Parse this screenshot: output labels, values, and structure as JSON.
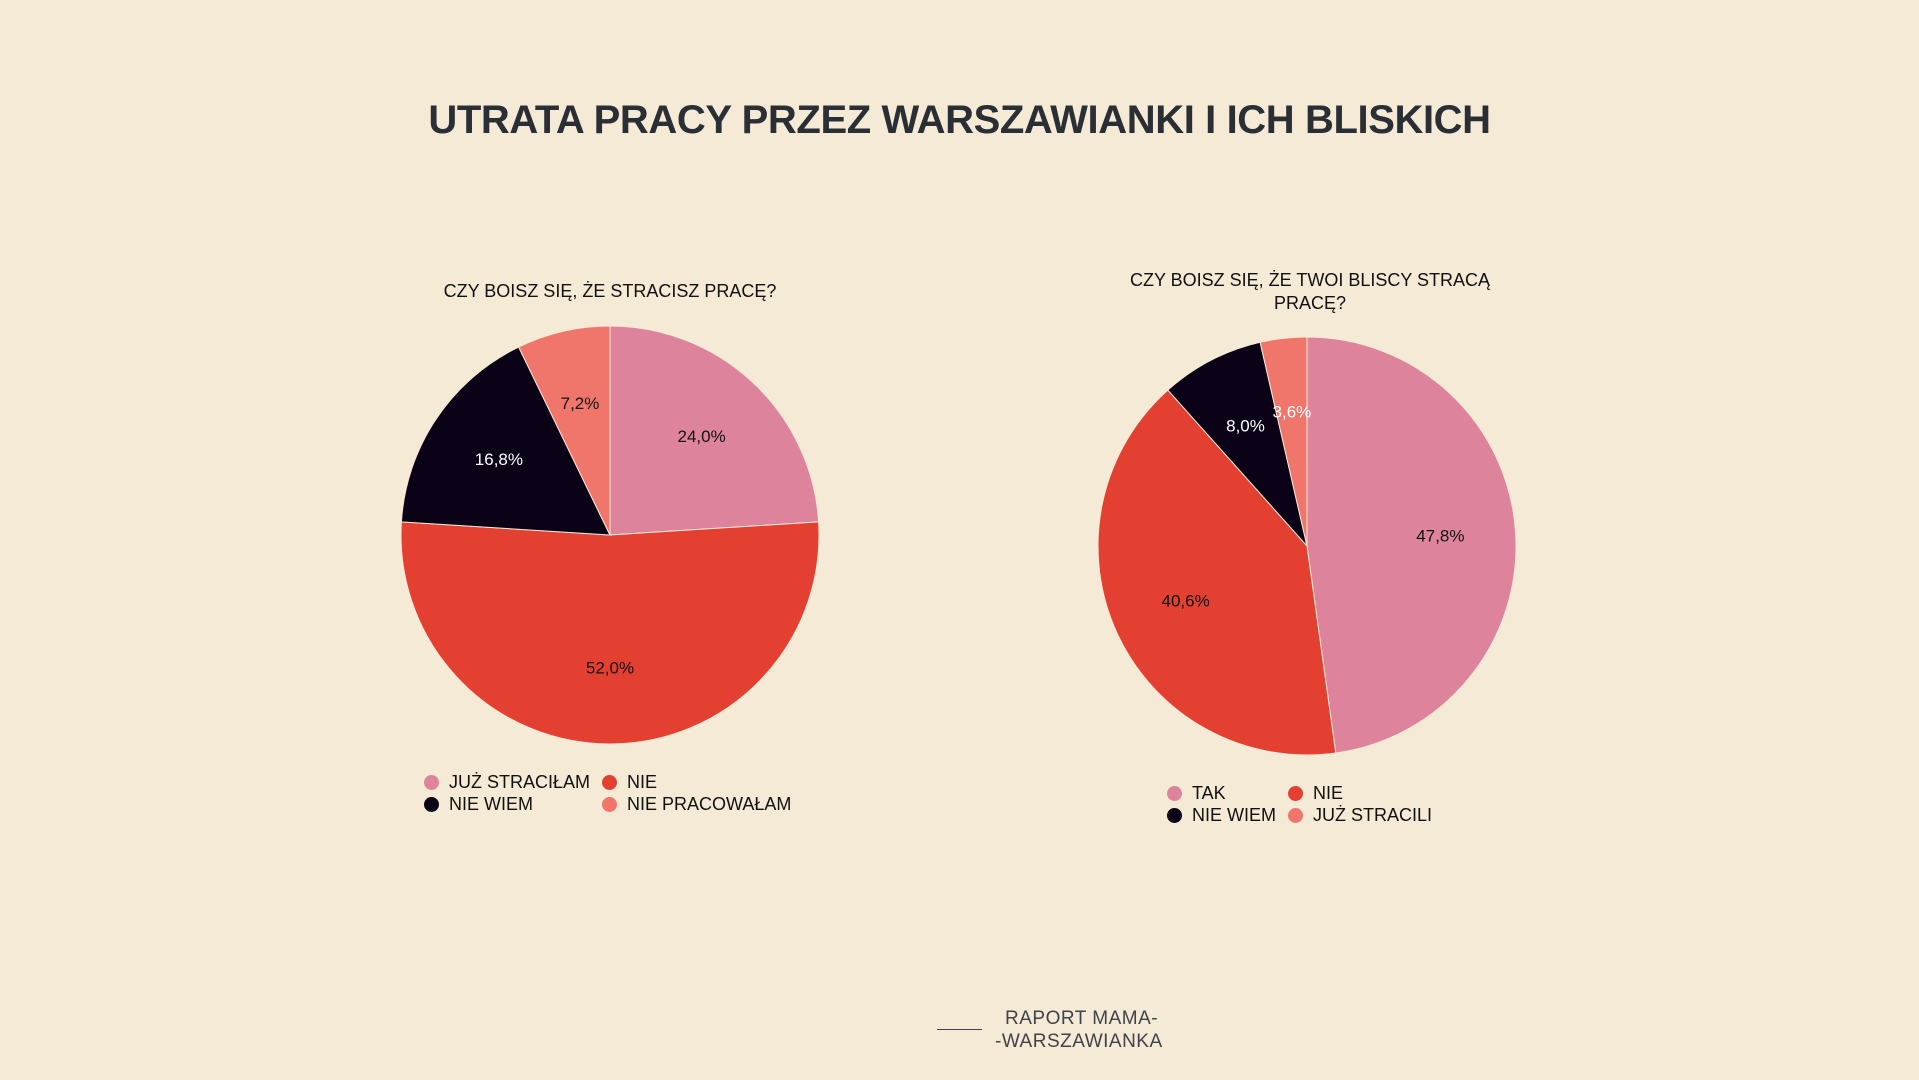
{
  "title": "UTRATA PRACY PRZEZ WARSZAWIANKI I ICH BLISKICH",
  "colors": {
    "background": "#F5EAD5",
    "pink": "#DD849C",
    "black": "#0C0218",
    "red": "#E44032",
    "salmon": "#F0766B"
  },
  "chart_data": [
    {
      "type": "pie",
      "title": "CZY BOISZ SIĘ, ŻE STRACISZ PRACĘ?",
      "slices": [
        {
          "label": "JUŻ STRACIŁAM",
          "value": 24.0,
          "display": "24,0%",
          "color": "#DD849C",
          "label_color": "#111111"
        },
        {
          "label": "NIE",
          "value": 52.0,
          "display": "52,0%",
          "color": "#E44032",
          "label_color": "#111111"
        },
        {
          "label": "NIE WIEM",
          "value": 16.8,
          "display": "16,8%",
          "color": "#0C0218",
          "label_color": "#FFFFFF"
        },
        {
          "label": "NIE PRACOWAŁAM",
          "value": 7.2,
          "display": "7,2%",
          "color": "#F0766B",
          "label_color": "#111111"
        }
      ],
      "legend": [
        {
          "label": "JUŻ STRACIŁAM",
          "color": "#DD849C"
        },
        {
          "label": "NIE",
          "color": "#E44032"
        },
        {
          "label": "NIE WIEM",
          "color": "#0C0218"
        },
        {
          "label": "NIE PRACOWAŁAM",
          "color": "#F0766B"
        }
      ]
    },
    {
      "type": "pie",
      "title": "CZY BOISZ SIĘ, ŻE TWOI BLISCY STRACĄ PRACĘ?",
      "slices": [
        {
          "label": "TAK",
          "value": 47.8,
          "display": "47,8%",
          "color": "#DD849C",
          "label_color": "#111111"
        },
        {
          "label": "NIE",
          "value": 40.6,
          "display": "40,6%",
          "color": "#E44032",
          "label_color": "#111111"
        },
        {
          "label": "NIE WIEM",
          "value": 8.0,
          "display": "8,0%",
          "color": "#0C0218",
          "label_color": "#FFFFFF"
        },
        {
          "label": "JUŻ STRACILI",
          "value": 3.6,
          "display": "3,6%",
          "color": "#F0766B",
          "label_color": "#FFFFFF"
        }
      ],
      "legend": [
        {
          "label": "TAK",
          "color": "#DD849C"
        },
        {
          "label": "NIE",
          "color": "#E44032"
        },
        {
          "label": "NIE WIEM",
          "color": "#0C0218"
        },
        {
          "label": "JUŻ STRACILI",
          "color": "#F0766B"
        }
      ]
    }
  ],
  "footer": {
    "line1": "RAPORT MAMA-",
    "line2": "-WARSZAWIANKA"
  }
}
